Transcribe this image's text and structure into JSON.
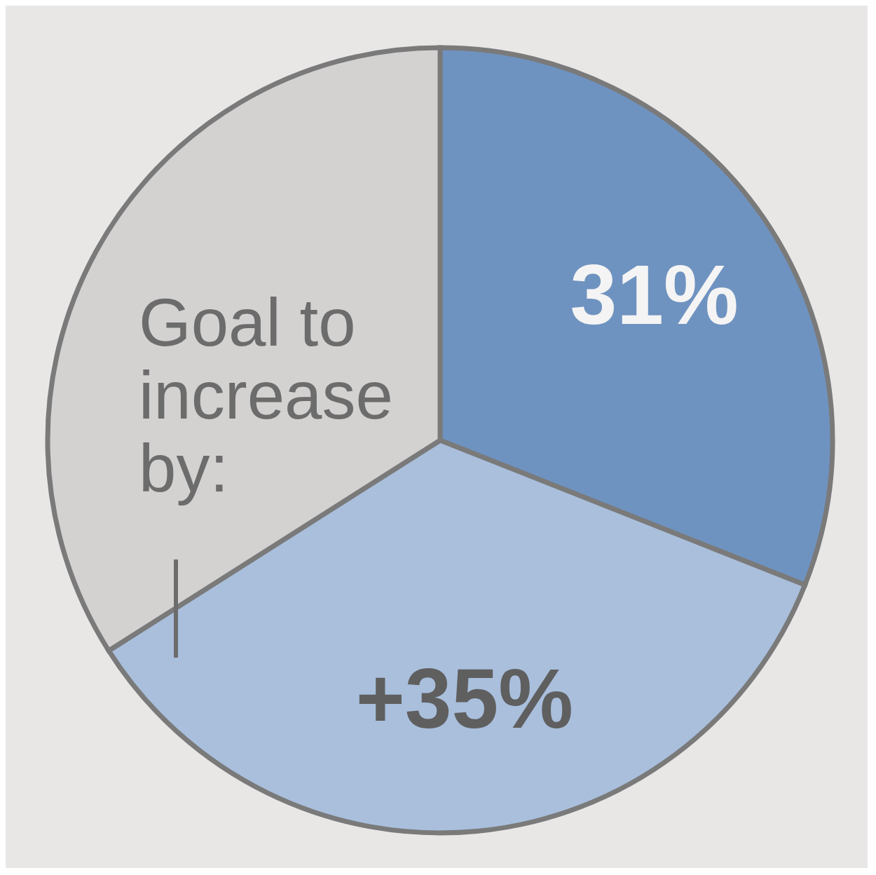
{
  "chart_data": {
    "type": "pie",
    "categories": [
      null,
      null,
      null
    ],
    "values": [
      31,
      35,
      34
    ],
    "colors": [
      "#6f93c0",
      "#a9bfdc",
      "#d4d1d1"
    ],
    "value_labels": [
      "31%",
      "+35%",
      null
    ],
    "annotations": [
      "Goal to increase by:"
    ]
  }
}
